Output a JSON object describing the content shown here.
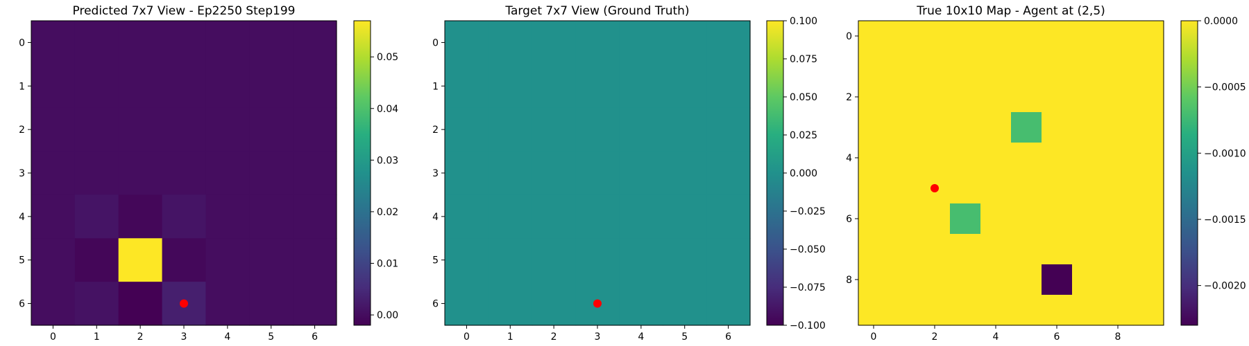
{
  "chart_data": [
    {
      "type": "heatmap",
      "title": "Predicted 7x7 View - Ep2250 Step199",
      "rows": 7,
      "cols": 7,
      "colormap": "viridis",
      "vmin": -0.002,
      "vmax": 0.057,
      "x_ticks": [
        "0",
        "1",
        "2",
        "3",
        "4",
        "5",
        "6"
      ],
      "y_ticks": [
        "0",
        "1",
        "2",
        "3",
        "4",
        "5",
        "6"
      ],
      "colorbar_ticks": [
        {
          "value": 0.0,
          "label": "0.00"
        },
        {
          "value": 0.01,
          "label": "0.01"
        },
        {
          "value": 0.02,
          "label": "0.02"
        },
        {
          "value": 0.03,
          "label": "0.03"
        },
        {
          "value": 0.04,
          "label": "0.04"
        },
        {
          "value": 0.05,
          "label": "0.05"
        }
      ],
      "values": [
        [
          0,
          0,
          0,
          0,
          0,
          0,
          0
        ],
        [
          0,
          0,
          0,
          0,
          0,
          0,
          0
        ],
        [
          0,
          0,
          0,
          0,
          0,
          0,
          0
        ],
        [
          0,
          0,
          0,
          0,
          0,
          0,
          0
        ],
        [
          0,
          0.0012,
          -0.001,
          0.0012,
          0,
          0,
          0
        ],
        [
          0,
          -0.0012,
          0.057,
          -0.0008,
          0,
          0,
          0
        ],
        [
          0,
          0.0008,
          -0.002,
          0.003,
          0,
          0,
          0
        ]
      ],
      "agent_marker": {
        "x": 3,
        "y": 6,
        "color": "#ff0000"
      }
    },
    {
      "type": "heatmap",
      "title": "Target 7x7 View (Ground Truth)",
      "rows": 7,
      "cols": 7,
      "colormap": "viridis",
      "vmin": -0.1,
      "vmax": 0.1,
      "x_ticks": [
        "0",
        "1",
        "2",
        "3",
        "4",
        "5",
        "6"
      ],
      "y_ticks": [
        "0",
        "1",
        "2",
        "3",
        "4",
        "5",
        "6"
      ],
      "colorbar_ticks": [
        {
          "value": -0.1,
          "label": "−0.100"
        },
        {
          "value": -0.075,
          "label": "−0.075"
        },
        {
          "value": -0.05,
          "label": "−0.050"
        },
        {
          "value": -0.025,
          "label": "−0.025"
        },
        {
          "value": 0.0,
          "label": "0.000"
        },
        {
          "value": 0.025,
          "label": "0.025"
        },
        {
          "value": 0.05,
          "label": "0.050"
        },
        {
          "value": 0.075,
          "label": "0.075"
        },
        {
          "value": 0.1,
          "label": "0.100"
        }
      ],
      "values": [
        [
          0,
          0,
          0,
          0,
          0,
          0,
          0
        ],
        [
          0,
          0,
          0,
          0,
          0,
          0,
          0
        ],
        [
          0,
          0,
          0,
          0,
          0,
          0,
          0
        ],
        [
          0,
          0,
          0,
          0,
          0,
          0,
          0
        ],
        [
          0,
          0,
          0,
          0,
          0,
          0,
          0
        ],
        [
          0,
          0,
          0,
          0,
          0,
          0,
          0
        ],
        [
          0,
          0,
          0,
          0,
          0,
          0,
          0
        ]
      ],
      "agent_marker": {
        "x": 3,
        "y": 6,
        "color": "#ff0000"
      }
    },
    {
      "type": "heatmap",
      "title": "True 10x10 Map - Agent at (2,5)",
      "rows": 10,
      "cols": 10,
      "colormap": "viridis",
      "vmin": -0.0023,
      "vmax": 0.0,
      "x_ticks": [
        "0",
        "2",
        "4",
        "6",
        "8"
      ],
      "y_ticks": [
        "0",
        "2",
        "4",
        "6",
        "8"
      ],
      "tick_step": 2,
      "colorbar_ticks": [
        {
          "value": 0.0,
          "label": "0.0000"
        },
        {
          "value": -0.0005,
          "label": "−0.0005"
        },
        {
          "value": -0.001,
          "label": "−0.0010"
        },
        {
          "value": -0.0015,
          "label": "−0.0015"
        },
        {
          "value": -0.002,
          "label": "−0.0020"
        }
      ],
      "values": [
        [
          0,
          0,
          0,
          0,
          0,
          0,
          0,
          0,
          0,
          0
        ],
        [
          0,
          0,
          0,
          0,
          0,
          0,
          0,
          0,
          0,
          0
        ],
        [
          0,
          0,
          0,
          0,
          0,
          0,
          0,
          0,
          0,
          0
        ],
        [
          0,
          0,
          0,
          0,
          0,
          -0.0007,
          0,
          0,
          0,
          0
        ],
        [
          0,
          0,
          0,
          0,
          0,
          0,
          0,
          0,
          0,
          0
        ],
        [
          0,
          0,
          0,
          0,
          0,
          0,
          0,
          0,
          0,
          0
        ],
        [
          0,
          0,
          0,
          -0.0007,
          0,
          0,
          0,
          0,
          0,
          0
        ],
        [
          0,
          0,
          0,
          0,
          0,
          0,
          0,
          0,
          0,
          0
        ],
        [
          0,
          0,
          0,
          0,
          0,
          0,
          -0.0023,
          0,
          0,
          0
        ],
        [
          0,
          0,
          0,
          0,
          0,
          0,
          0,
          0,
          0,
          0
        ]
      ],
      "agent_marker": {
        "x": 2,
        "y": 5,
        "color": "#ff0000"
      }
    }
  ]
}
